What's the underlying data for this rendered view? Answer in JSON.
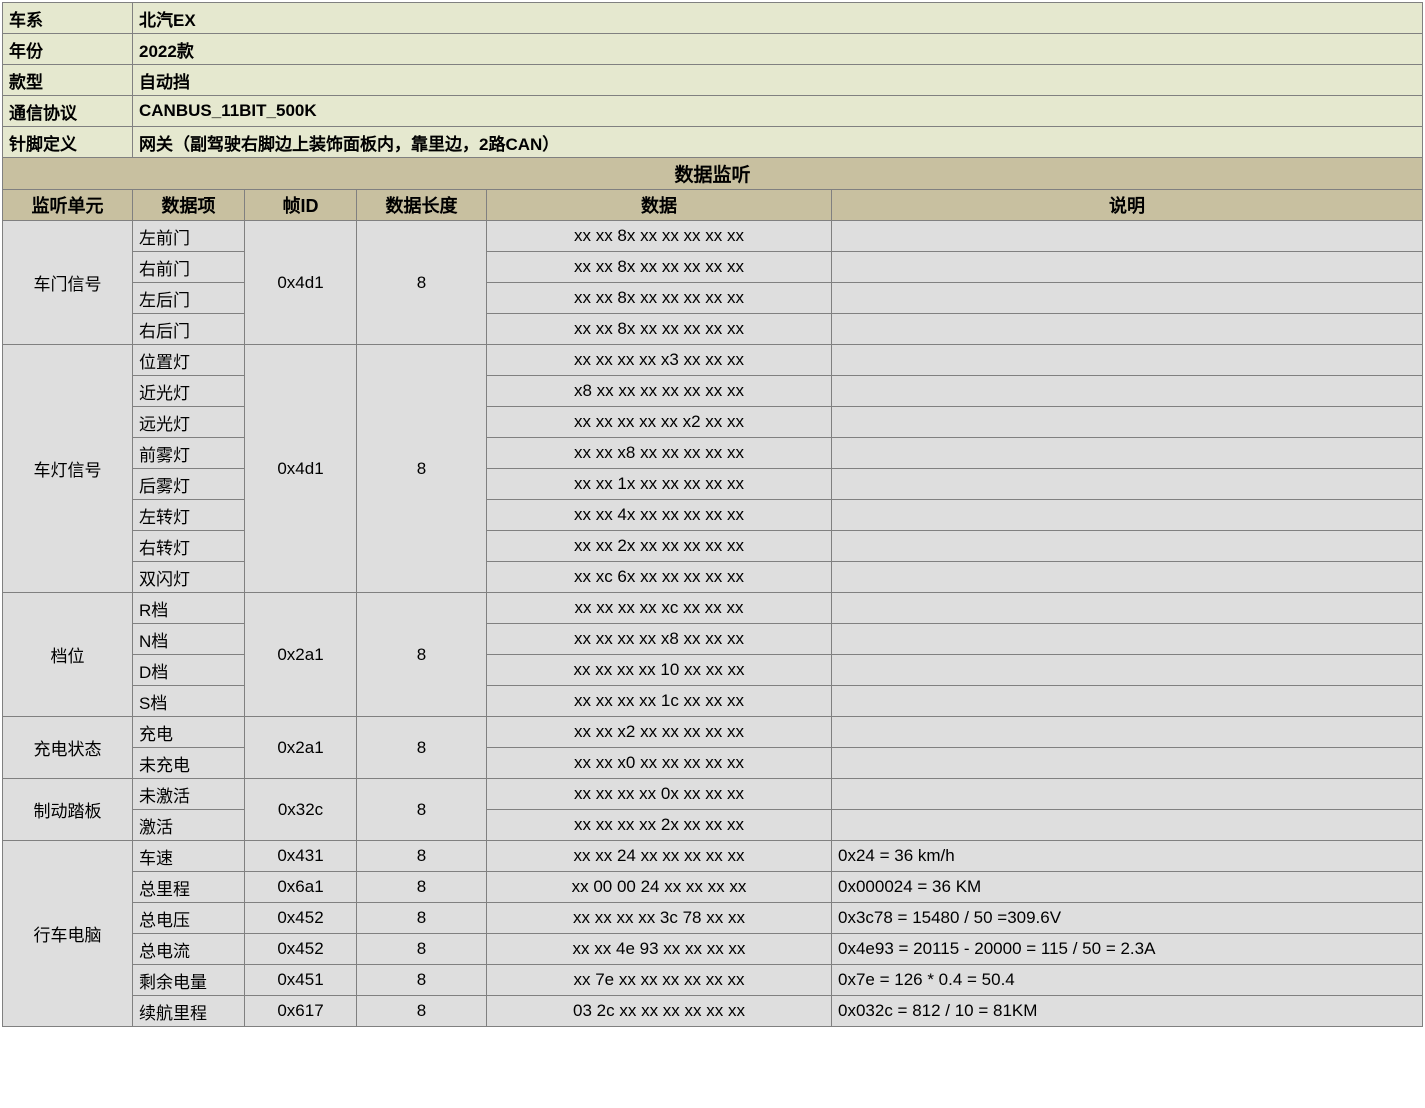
{
  "header": {
    "labels": {
      "series": "车系",
      "year": "年份",
      "variant": "款型",
      "protocol": "通信协议",
      "pin": "针脚定义"
    },
    "values": {
      "series": "北汽EX",
      "year": "2022款",
      "variant": "自动挡",
      "protocol": "CANBUS_11BIT_500K",
      "pin": "网关（副驾驶右脚边上装饰面板内，靠里边，2路CAN）"
    }
  },
  "section_title": "数据监听",
  "col": {
    "unit": "监听单元",
    "item": "数据项",
    "id": "帧ID",
    "len": "数据长度",
    "data": "数据",
    "desc": "说明"
  },
  "groups": [
    {
      "unit": "车门信号",
      "id": "0x4d1",
      "len": "8",
      "rows": [
        {
          "item": "左前门",
          "data": "xx xx 8x xx xx xx xx xx",
          "desc": ""
        },
        {
          "item": "右前门",
          "data": "xx xx 8x xx xx xx xx xx",
          "desc": ""
        },
        {
          "item": "左后门",
          "data": "xx xx 8x xx xx xx xx xx",
          "desc": ""
        },
        {
          "item": "右后门",
          "data": "xx xx 8x xx xx xx xx xx",
          "desc": ""
        }
      ]
    },
    {
      "unit": "车灯信号",
      "id": "0x4d1",
      "len": "8",
      "rows": [
        {
          "item": "位置灯",
          "data": "xx xx xx xx x3 xx xx xx",
          "desc": ""
        },
        {
          "item": "近光灯",
          "data": "x8 xx xx xx xx xx xx xx",
          "desc": ""
        },
        {
          "item": "远光灯",
          "data": "xx xx xx xx xx x2 xx xx",
          "desc": ""
        },
        {
          "item": "前雾灯",
          "data": "xx xx x8 xx xx xx xx xx",
          "desc": ""
        },
        {
          "item": "后雾灯",
          "data": "xx xx 1x xx xx xx xx xx",
          "desc": ""
        },
        {
          "item": "左转灯",
          "data": "xx xx 4x xx xx xx xx xx",
          "desc": ""
        },
        {
          "item": "右转灯",
          "data": "xx xx 2x xx xx xx xx xx",
          "desc": ""
        },
        {
          "item": "双闪灯",
          "data": "xx xc 6x xx xx xx xx xx",
          "desc": ""
        }
      ]
    },
    {
      "unit": "档位",
      "id": "0x2a1",
      "len": "8",
      "rows": [
        {
          "item": "R档",
          "data": "xx xx xx xx xc xx xx xx",
          "desc": ""
        },
        {
          "item": "N档",
          "data": "xx xx xx xx x8 xx xx xx",
          "desc": ""
        },
        {
          "item": "D档",
          "data": "xx xx xx xx 10 xx xx xx",
          "desc": ""
        },
        {
          "item": "S档",
          "data": "xx xx xx xx 1c xx xx xx",
          "desc": ""
        }
      ]
    },
    {
      "unit": "充电状态",
      "id": "0x2a1",
      "len": "8",
      "rows": [
        {
          "item": "充电",
          "data": "xx xx x2 xx xx xx xx xx",
          "desc": ""
        },
        {
          "item": "未充电",
          "data": "xx xx x0 xx xx xx xx xx",
          "desc": ""
        }
      ]
    },
    {
      "unit": "制动踏板",
      "id": "0x32c",
      "len": "8",
      "rows": [
        {
          "item": "未激活",
          "data": "xx xx xx xx 0x xx xx xx",
          "desc": ""
        },
        {
          "item": "激活",
          "data": "xx xx xx xx 2x xx xx xx",
          "desc": ""
        }
      ]
    },
    {
      "unit": "行车电脑",
      "rows": [
        {
          "item": "车速",
          "id": "0x431",
          "len": "8",
          "data": "xx xx 24 xx xx xx xx xx",
          "desc": "0x24 = 36 km/h"
        },
        {
          "item": "总里程",
          "id": "0x6a1",
          "len": "8",
          "data": "xx 00 00 24 xx xx xx xx",
          "desc": "0x000024 = 36 KM"
        },
        {
          "item": "总电压",
          "id": "0x452",
          "len": "8",
          "data": "xx xx xx xx 3c 78 xx xx",
          "desc": "0x3c78 = 15480 / 50 =309.6V"
        },
        {
          "item": "总电流",
          "id": "0x452",
          "len": "8",
          "data": "xx xx 4e 93 xx xx xx xx",
          "desc": "0x4e93 = 20115 - 20000 = 115 / 50 = 2.3A"
        },
        {
          "item": "剩余电量",
          "id": "0x451",
          "len": "8",
          "data": "xx 7e xx xx xx xx xx xx",
          "desc": "0x7e = 126 * 0.4 = 50.4"
        },
        {
          "item": "续航里程",
          "id": "0x617",
          "len": "8",
          "data": "03 2c xx xx xx xx xx xx",
          "desc": "0x032c = 812 / 10 = 81KM"
        }
      ]
    }
  ]
}
